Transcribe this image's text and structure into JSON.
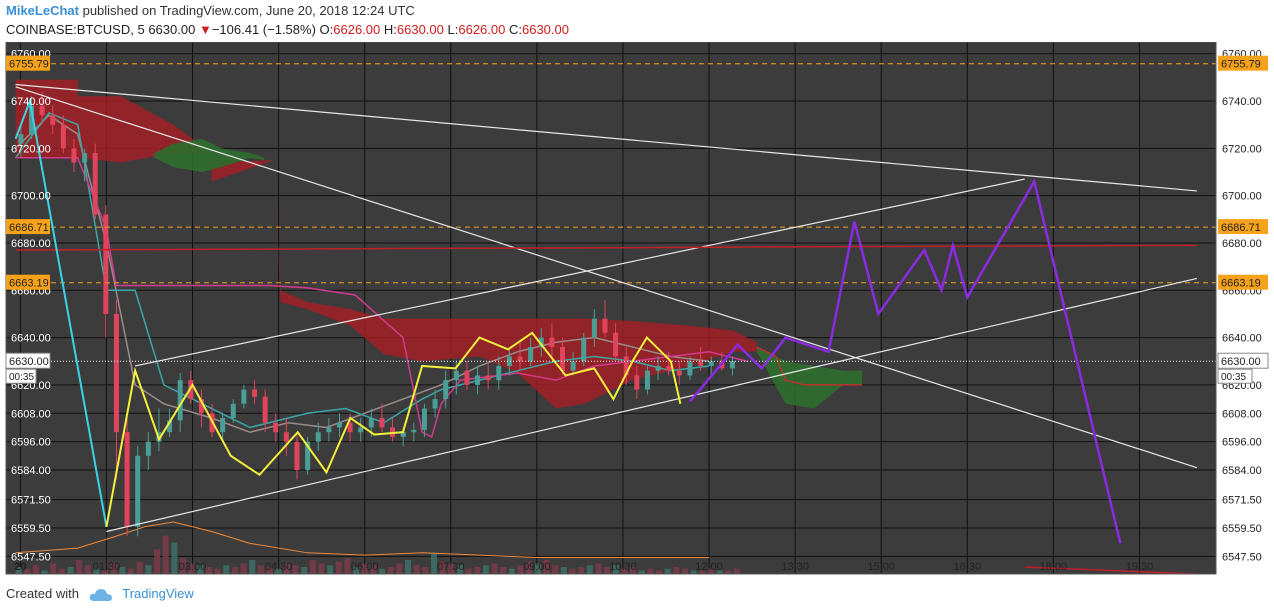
{
  "header": {
    "author": "MikeLeChat",
    "published_text": "published on TradingView.com, June 20, 2018 12:24 UTC",
    "symbol": "COINBASE:BTCUSD, 5",
    "last": "6630.00",
    "change_arrow": "▼",
    "change": "−106.41 (−1.58%)",
    "o_label": "O:",
    "o_value": "6626.00",
    "h_label": "H:",
    "h_value": "6630.00",
    "l_label": "L:",
    "l_value": "6626.00",
    "c_label": "C:",
    "c_value": "6630.00"
  },
  "footer": {
    "created_with": "Created with",
    "brand": "TradingView"
  },
  "chart_data": {
    "type": "candlestick",
    "colors": {
      "background": "#3c3c3c",
      "grid": "#000000",
      "up": "#4a9e96",
      "down": "#e0445c",
      "price_label_bg": "#f7a21b"
    },
    "x_ticks": [
      {
        "label": "20",
        "t": 0
      },
      {
        "label": "01:30",
        "t": 90
      },
      {
        "label": "03:00",
        "t": 180
      },
      {
        "label": "04:30",
        "t": 270
      },
      {
        "label": "06:00",
        "t": 360
      },
      {
        "label": "07:30",
        "t": 450
      },
      {
        "label": "09:00",
        "t": 540
      },
      {
        "label": "10:30",
        "t": 630
      },
      {
        "label": "12:00",
        "t": 720
      },
      {
        "label": "13:30",
        "t": 810
      },
      {
        "label": "15:00",
        "t": 900
      },
      {
        "label": "16:30",
        "t": 990
      },
      {
        "label": "18:00",
        "t": 1080
      },
      {
        "label": "19:30",
        "t": 1170
      }
    ],
    "x_range": [
      -15,
      1250
    ],
    "y_range": [
      6543,
      6762
    ],
    "y_ticks": [
      "6740.00",
      "6720.00",
      "6700.00",
      "6680.00",
      "6660.00",
      "6640.00",
      "6620.00",
      "6608.00",
      "6596.00",
      "6584.00",
      "6571.50",
      "6559.50",
      "6547.50",
      "6760.00"
    ],
    "y_tick_values": [
      6740,
      6720,
      6700,
      6680,
      6660,
      6640,
      6620,
      6608,
      6596,
      6584,
      6571.5,
      6559.5,
      6547.5,
      6760
    ],
    "price_levels": [
      {
        "label": "6755.79",
        "value": 6755.79
      },
      {
        "label": "6686.71",
        "value": 6686.71
      },
      {
        "label": "6663.19",
        "value": 6663.19
      }
    ],
    "current_price": {
      "label": "6630.00",
      "value": 6630.0,
      "countdown": "00:35"
    },
    "cloud_bear": [
      [
        -5,
        6749,
        6716
      ],
      [
        60,
        6749,
        6716
      ],
      [
        60,
        6742,
        6716
      ],
      [
        105,
        6742,
        6714
      ],
      [
        160,
        6730,
        6718
      ],
      [
        200,
        6718,
        6718
      ],
      [
        200,
        6714,
        6706
      ],
      [
        265,
        6715,
        6715
      ],
      [
        272,
        6660,
        6655
      ],
      [
        300,
        6655,
        6652
      ],
      [
        345,
        6652,
        6645
      ],
      [
        380,
        6648,
        6633
      ],
      [
        420,
        6648,
        6630
      ],
      [
        480,
        6648,
        6632
      ],
      [
        520,
        6648,
        6625
      ],
      [
        560,
        6648,
        6610
      ],
      [
        590,
        6648,
        6612
      ],
      [
        640,
        6647,
        6622
      ],
      [
        700,
        6645,
        6628
      ],
      [
        745,
        6643,
        6634
      ],
      [
        770,
        6638,
        6634
      ]
    ],
    "cloud_bull": [
      [
        140,
        6718,
        6716
      ],
      [
        160,
        6722,
        6712
      ],
      [
        190,
        6724,
        6710
      ],
      [
        210,
        6720,
        6712
      ],
      [
        240,
        6718,
        6716
      ],
      [
        255,
        6716,
        6715
      ]
    ],
    "cloud_bull2": [
      [
        770,
        6636,
        6634
      ],
      [
        800,
        6630,
        6612
      ],
      [
        830,
        6628,
        6610
      ],
      [
        860,
        6626,
        6620
      ],
      [
        880,
        6626,
        6620
      ]
    ],
    "cloud_bear_tail": [
      [
        770,
        6636,
        6634
      ],
      [
        790,
        6632,
        6610
      ],
      [
        800,
        6622,
        6604
      ],
      [
        820,
        6620,
        6605
      ],
      [
        840,
        6620,
        6618
      ],
      [
        880,
        6620,
        6620
      ]
    ],
    "cyan_line": [
      [
        -5,
        6724
      ],
      [
        10,
        6740
      ],
      [
        90,
        6560
      ]
    ],
    "yellow_line": [
      [
        90,
        6560
      ],
      [
        125,
        6626
      ],
      [
        155,
        6597
      ],
      [
        195,
        6620
      ],
      [
        240,
        6590
      ],
      [
        270,
        6582
      ],
      [
        310,
        6600
      ],
      [
        345,
        6583
      ],
      [
        365,
        6606
      ],
      [
        390,
        6599
      ],
      [
        410,
        6600
      ],
      [
        430,
        6628
      ],
      [
        465,
        6627
      ],
      [
        490,
        6640
      ],
      [
        520,
        6635
      ],
      [
        545,
        6642
      ],
      [
        585,
        6624
      ],
      [
        615,
        6627
      ],
      [
        635,
        6614
      ],
      [
        650,
        6630
      ],
      [
        665,
        6640
      ],
      [
        690,
        6630
      ],
      [
        700,
        6612
      ]
    ],
    "yellow_line_adj": [
      [
        90,
        6560
      ],
      [
        120,
        6626
      ],
      [
        145,
        6597
      ],
      [
        180,
        6620
      ],
      [
        220,
        6590
      ],
      [
        250,
        6582
      ],
      [
        290,
        6600
      ],
      [
        320,
        6583
      ],
      [
        345,
        6606
      ],
      [
        370,
        6599
      ],
      [
        400,
        6600
      ],
      [
        420,
        6628
      ],
      [
        455,
        6627
      ],
      [
        480,
        6640
      ],
      [
        510,
        6635
      ],
      [
        535,
        6642
      ],
      [
        570,
        6624
      ],
      [
        600,
        6627
      ],
      [
        620,
        6614
      ],
      [
        640,
        6630
      ],
      [
        655,
        6640
      ],
      [
        680,
        6630
      ],
      [
        690,
        6612
      ]
    ],
    "purple_line": [
      [
        700,
        6613
      ],
      [
        750,
        6637
      ],
      [
        775,
        6627
      ],
      [
        800,
        6640
      ],
      [
        845,
        6634
      ],
      [
        872,
        6689
      ],
      [
        897,
        6650
      ],
      [
        945,
        6677
      ],
      [
        963,
        6660
      ],
      [
        975,
        6679
      ],
      [
        990,
        6657
      ],
      [
        1060,
        6706
      ],
      [
        1150,
        6553
      ]
    ],
    "white_lines": [
      [
        [
          -5,
          6747
        ],
        [
          1230,
          6702
        ]
      ],
      [
        [
          -5,
          6746
        ],
        [
          1230,
          6585
        ]
      ],
      [
        [
          90,
          6558
        ],
        [
          1230,
          6665
        ]
      ],
      [
        [
          120,
          6628
        ],
        [
          1050,
          6707
        ]
      ]
    ],
    "red_lines": [
      [
        [
          -5,
          6677
        ],
        [
          1230,
          6679
        ]
      ],
      [
        [
          1050,
          6543
        ],
        [
          1230,
          6540
        ]
      ]
    ],
    "volume_max": 40,
    "volume": [
      4,
      3,
      5,
      2,
      6,
      3,
      4,
      8,
      5,
      3,
      2,
      6,
      4,
      3,
      7,
      5,
      14,
      22,
      18,
      9,
      6,
      5,
      4,
      3,
      5,
      4,
      6,
      8,
      5,
      4,
      3,
      6,
      5,
      4,
      8,
      6,
      5,
      7,
      9,
      4,
      6,
      5,
      3,
      4,
      6,
      8,
      5,
      4,
      12,
      7,
      6,
      5,
      3,
      4,
      5,
      6,
      4,
      3,
      5,
      7,
      6,
      8,
      5,
      4,
      3,
      4,
      5,
      6,
      4,
      5,
      3,
      4,
      2,
      3,
      2,
      3,
      4,
      3,
      2,
      2,
      3,
      2,
      2,
      3
    ],
    "candles": [
      [
        6722,
        6730,
        6716,
        6726
      ],
      [
        6726,
        6742,
        6724,
        6738
      ],
      [
        6738,
        6744,
        6730,
        6734
      ],
      [
        6734,
        6738,
        6726,
        6730
      ],
      [
        6730,
        6734,
        6718,
        6720
      ],
      [
        6720,
        6724,
        6710,
        6714
      ],
      [
        6714,
        6720,
        6706,
        6718
      ],
      [
        6718,
        6722,
        6690,
        6692
      ],
      [
        6692,
        6696,
        6640,
        6650
      ],
      [
        6650,
        6656,
        6580,
        6600
      ],
      [
        6600,
        6606,
        6556,
        6560
      ],
      [
        6560,
        6594,
        6556,
        6590
      ],
      [
        6590,
        6600,
        6584,
        6596
      ],
      [
        6596,
        6610,
        6592,
        6600
      ],
      [
        6600,
        6610,
        6598,
        6605
      ],
      [
        6605,
        6625,
        6600,
        6622
      ],
      [
        6622,
        6626,
        6612,
        6614
      ],
      [
        6614,
        6618,
        6602,
        6608
      ],
      [
        6608,
        6612,
        6598,
        6600
      ],
      [
        6600,
        6608,
        6596,
        6606
      ],
      [
        6606,
        6614,
        6604,
        6612
      ],
      [
        6612,
        6620,
        6610,
        6618
      ],
      [
        6618,
        6622,
        6612,
        6615
      ],
      [
        6615,
        6618,
        6600,
        6604
      ],
      [
        6604,
        6608,
        6596,
        6600
      ],
      [
        6600,
        6606,
        6590,
        6596
      ],
      [
        6596,
        6600,
        6580,
        6584
      ],
      [
        6584,
        6598,
        6582,
        6596
      ],
      [
        6596,
        6604,
        6592,
        6600
      ],
      [
        6600,
        6606,
        6596,
        6602
      ],
      [
        6602,
        6608,
        6598,
        6604
      ],
      [
        6604,
        6608,
        6596,
        6600
      ],
      [
        6600,
        6606,
        6596,
        6602
      ],
      [
        6602,
        6610,
        6598,
        6606
      ],
      [
        6606,
        6612,
        6600,
        6602
      ],
      [
        6602,
        6606,
        6596,
        6598
      ],
      [
        6598,
        6602,
        6594,
        6600
      ],
      [
        6600,
        6604,
        6596,
        6601
      ],
      [
        6601,
        6612,
        6598,
        6610
      ],
      [
        6610,
        6618,
        6606,
        6614
      ],
      [
        6614,
        6626,
        6610,
        6622
      ],
      [
        6622,
        6630,
        6616,
        6626
      ],
      [
        6626,
        6630,
        6618,
        6620
      ],
      [
        6620,
        6628,
        6616,
        6624
      ],
      [
        6624,
        6630,
        6618,
        6622
      ],
      [
        6622,
        6632,
        6618,
        6628
      ],
      [
        6628,
        6636,
        6624,
        6632
      ],
      [
        6632,
        6638,
        6626,
        6630
      ],
      [
        6630,
        6640,
        6628,
        6636
      ],
      [
        6636,
        6644,
        6632,
        6640
      ],
      [
        6640,
        6646,
        6632,
        6636
      ],
      [
        6636,
        6640,
        6624,
        6626
      ],
      [
        6626,
        6634,
        6624,
        6630
      ],
      [
        6630,
        6642,
        6628,
        6640
      ],
      [
        6640,
        6652,
        6636,
        6648
      ],
      [
        6648,
        6656,
        6640,
        6642
      ],
      [
        6642,
        6646,
        6630,
        6632
      ],
      [
        6632,
        6636,
        6620,
        6624
      ],
      [
        6624,
        6628,
        6614,
        6618
      ],
      [
        6618,
        6628,
        6616,
        6626
      ],
      [
        6626,
        6632,
        6622,
        6628
      ],
      [
        6628,
        6634,
        6624,
        6626
      ],
      [
        6626,
        6630,
        6620,
        6624
      ],
      [
        6624,
        6632,
        6622,
        6630
      ],
      [
        6630,
        6636,
        6626,
        6628
      ],
      [
        6628,
        6632,
        6624,
        6630
      ],
      [
        6630,
        6634,
        6626,
        6627
      ],
      [
        6627,
        6632,
        6624,
        6630
      ]
    ],
    "pink_line": [
      [
        -5,
        6716
      ],
      [
        60,
        6716
      ],
      [
        90,
        6686
      ],
      [
        100,
        6662
      ],
      [
        160,
        6662
      ],
      [
        260,
        6662
      ],
      [
        300,
        6661
      ],
      [
        350,
        6658
      ],
      [
        400,
        6640
      ],
      [
        420,
        6600
      ],
      [
        430,
        6598
      ],
      [
        440,
        6612
      ],
      [
        460,
        6622
      ],
      [
        520,
        6625
      ],
      [
        560,
        6622
      ],
      [
        600,
        6628
      ],
      [
        640,
        6630
      ],
      [
        680,
        6632
      ],
      [
        720,
        6634
      ],
      [
        760,
        6630
      ]
    ],
    "teal_line": [
      [
        -5,
        6716
      ],
      [
        30,
        6735
      ],
      [
        60,
        6730
      ],
      [
        90,
        6660
      ],
      [
        120,
        6660
      ],
      [
        150,
        6620
      ],
      [
        200,
        6610
      ],
      [
        240,
        6602
      ],
      [
        260,
        6604
      ],
      [
        300,
        6608
      ],
      [
        340,
        6610
      ],
      [
        380,
        6604
      ],
      [
        420,
        6614
      ],
      [
        440,
        6618
      ],
      [
        460,
        6620
      ],
      [
        520,
        6626
      ],
      [
        560,
        6630
      ],
      [
        600,
        6632
      ],
      [
        640,
        6630
      ],
      [
        680,
        6626
      ],
      [
        720,
        6628
      ]
    ],
    "gray_line": [
      [
        -5,
        6720
      ],
      [
        30,
        6734
      ],
      [
        60,
        6726
      ],
      [
        90,
        6680
      ],
      [
        120,
        6620
      ],
      [
        150,
        6612
      ],
      [
        200,
        6606
      ],
      [
        240,
        6600
      ],
      [
        280,
        6604
      ],
      [
        320,
        6602
      ],
      [
        360,
        6608
      ],
      [
        400,
        6614
      ],
      [
        440,
        6620
      ],
      [
        480,
        6628
      ],
      [
        520,
        6634
      ],
      [
        560,
        6638
      ],
      [
        600,
        6640
      ],
      [
        640,
        6636
      ],
      [
        680,
        6632
      ],
      [
        720,
        6630
      ]
    ],
    "orange_line": [
      [
        -5,
        6549
      ],
      [
        60,
        6551
      ],
      [
        100,
        6556
      ],
      [
        130,
        6560
      ],
      [
        160,
        6562
      ],
      [
        200,
        6558
      ],
      [
        240,
        6553
      ],
      [
        300,
        6549
      ],
      [
        360,
        6548
      ],
      [
        420,
        6549
      ],
      [
        480,
        6548
      ],
      [
        540,
        6547
      ],
      [
        600,
        6547
      ],
      [
        660,
        6547
      ],
      [
        720,
        6547
      ]
    ]
  }
}
